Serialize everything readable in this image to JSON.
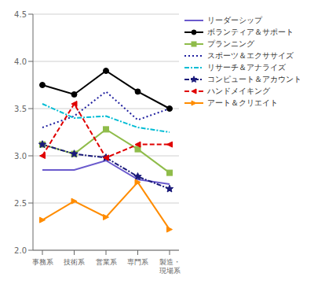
{
  "chart_data": {
    "type": "line",
    "categories": [
      "事務系",
      "技術系",
      "営業系",
      "専門系",
      "製造・\n現場系"
    ],
    "series": [
      {
        "name": "リーダーシップ",
        "color": "#6a5acd",
        "line_style": "solid",
        "values": [
          2.85,
          2.85,
          2.95,
          2.75,
          2.7
        ]
      },
      {
        "name": "ボランティア＆サポート",
        "color": "#000000",
        "line_style": "solid",
        "marker": "circle",
        "values": [
          3.75,
          3.65,
          3.9,
          3.68,
          3.5
        ]
      },
      {
        "name": "プランニング",
        "color": "#8fbc4a",
        "line_style": "solid",
        "marker": "square",
        "values": [
          3.12,
          3.02,
          3.28,
          3.07,
          2.82
        ]
      },
      {
        "name": "スポーツ＆エクササイズ",
        "color": "#1f1f9f",
        "line_style": "dotted",
        "values": [
          3.3,
          3.42,
          3.68,
          3.38,
          3.5
        ]
      },
      {
        "name": "リサーチ＆アナライズ",
        "color": "#00bcd4",
        "line_style": "dashdot",
        "values": [
          3.55,
          3.4,
          3.42,
          3.3,
          3.25
        ]
      },
      {
        "name": "コンピュート＆アカウント",
        "color": "#1a1a7a",
        "line_style": "dashdot",
        "marker": "star",
        "values": [
          3.12,
          3.02,
          2.98,
          2.78,
          2.65
        ]
      },
      {
        "name": "ハンドメイキング",
        "color": "#e00000",
        "line_style": "dashed",
        "marker": "triangle-left",
        "values": [
          3.0,
          3.55,
          2.98,
          3.12,
          3.12
        ]
      },
      {
        "name": "アート＆クリエイト",
        "color": "#ff8c00",
        "line_style": "solid",
        "marker": "triangle-right",
        "values": [
          2.32,
          2.52,
          2.35,
          2.72,
          2.22
        ]
      }
    ],
    "ylim": [
      2,
      4.5
    ],
    "yticks": [
      {
        "value": 2,
        "label": "2.0"
      },
      {
        "value": 2.5,
        "label": "2.5"
      },
      {
        "value": 3,
        "label": "3.0"
      },
      {
        "value": 3.5,
        "label": "3.5"
      },
      {
        "value": 4,
        "label": "4.0"
      },
      {
        "value": 4.5,
        "label": "4.5"
      }
    ],
    "grid": true,
    "legend": "right"
  }
}
